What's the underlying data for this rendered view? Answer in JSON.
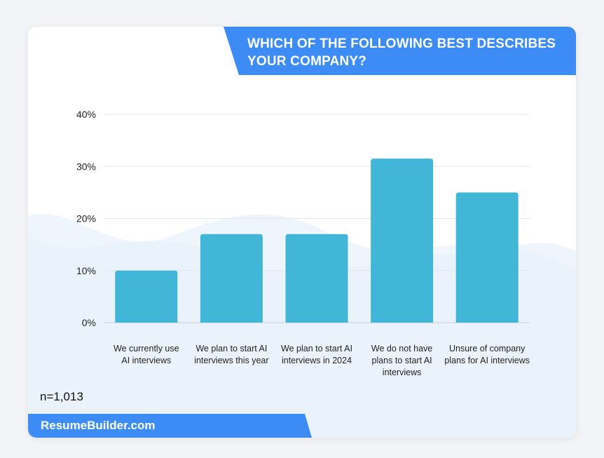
{
  "title": "WHICH OF THE FOLLOWING BEST DESCRIBES YOUR COMPANY?",
  "sample_size": "n=1,013",
  "brand": "ResumeBuilder.com",
  "colors": {
    "bar": "#42b6d6",
    "banner": "#3d8bf5",
    "grid": "#e2e4e8",
    "wave": "#e8f1fb"
  },
  "chart_data": {
    "type": "bar",
    "categories": [
      [
        "We currently use",
        "AI interviews"
      ],
      [
        "We plan to start AI",
        "interviews this year"
      ],
      [
        "We plan to start AI",
        "interviews in 2024"
      ],
      [
        "We do not have",
        "plans to start AI",
        "interviews"
      ],
      [
        "Unsure of company",
        "plans for AI interviews"
      ]
    ],
    "values": [
      10,
      17,
      17,
      31.5,
      25
    ],
    "ylim": [
      0,
      40
    ],
    "yticks": [
      "0%",
      "10%",
      "20%",
      "30%",
      "40%"
    ],
    "ytick_values": [
      0,
      10,
      20,
      30,
      40
    ],
    "grid": true,
    "xlabel": "",
    "ylabel": ""
  }
}
